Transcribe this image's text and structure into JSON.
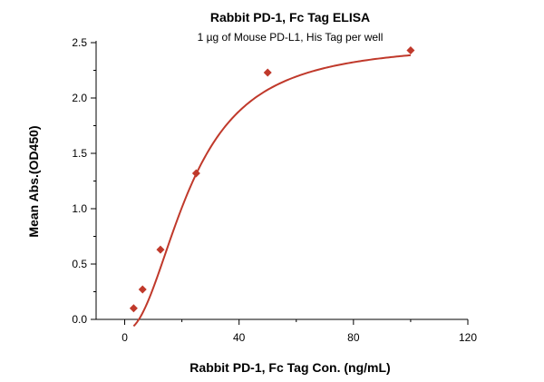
{
  "chart_data": {
    "type": "scatter",
    "title": "Rabbit PD-1, Fc Tag ELISA",
    "subtitle": "1 µg of Mouse PD-L1, His Tag per well",
    "xlabel": "Rabbit PD-1, Fc Tag Con. (ng/mL)",
    "ylabel": "Mean Abs.(OD450)",
    "xlim": [
      -10,
      120
    ],
    "ylim": [
      0,
      2.5
    ],
    "x_ticks": [
      0,
      40,
      80,
      120
    ],
    "x_tick_labels": [
      "0",
      "40",
      "80",
      "120"
    ],
    "y_ticks": [
      0,
      0.5,
      1.0,
      1.5,
      2.0,
      2.5
    ],
    "y_tick_labels": [
      "0.0",
      "0.5",
      "1.0",
      "1.5",
      "2.0",
      "2.5"
    ],
    "grid": false,
    "series": [
      {
        "x": [
          3.125,
          6.25,
          12.5,
          25,
          50,
          100
        ],
        "y": [
          0.1,
          0.27,
          0.63,
          1.32,
          2.23,
          2.43
        ]
      }
    ],
    "fit": {
      "type": "4PL",
      "bottom": -0.1,
      "top": 2.5,
      "ec50": 23,
      "hill": 2.1
    },
    "colors": {
      "marker": "#c0392b",
      "curve": "#c0392b",
      "axis": "#000000"
    }
  }
}
